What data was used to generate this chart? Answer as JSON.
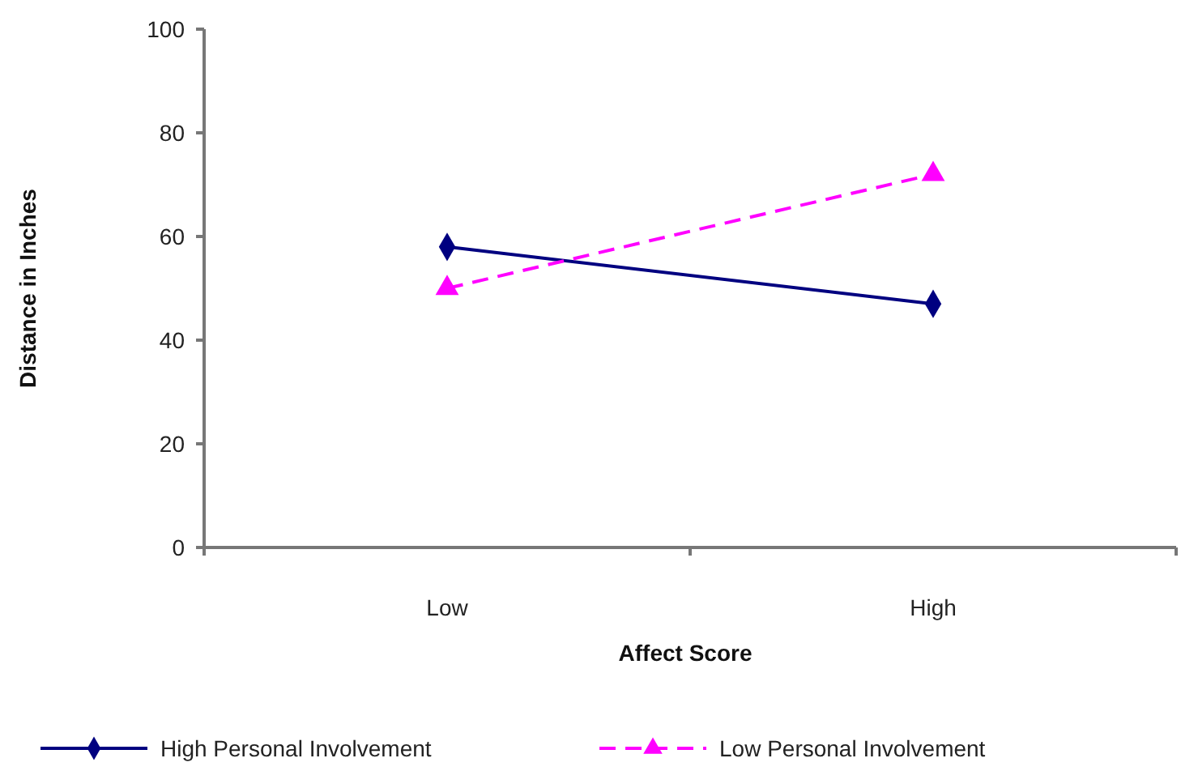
{
  "chart_data": {
    "type": "line",
    "xlabel": "Affect Score",
    "ylabel": "Distance in Inches",
    "categories": [
      "Low",
      "High"
    ],
    "ylim": [
      0,
      100
    ],
    "yticks": [
      0,
      20,
      40,
      60,
      80,
      100
    ],
    "grid": false,
    "legend": "bottom",
    "series": [
      {
        "name": "High Personal Involvement",
        "color": "#000080",
        "values": [
          58,
          47
        ],
        "marker": "diamond",
        "line_style": "solid"
      },
      {
        "name": "Low Personal Involvement",
        "color": "#ff00ff",
        "values": [
          50,
          72
        ],
        "marker": "triangle",
        "line_style": "dashed"
      }
    ]
  }
}
